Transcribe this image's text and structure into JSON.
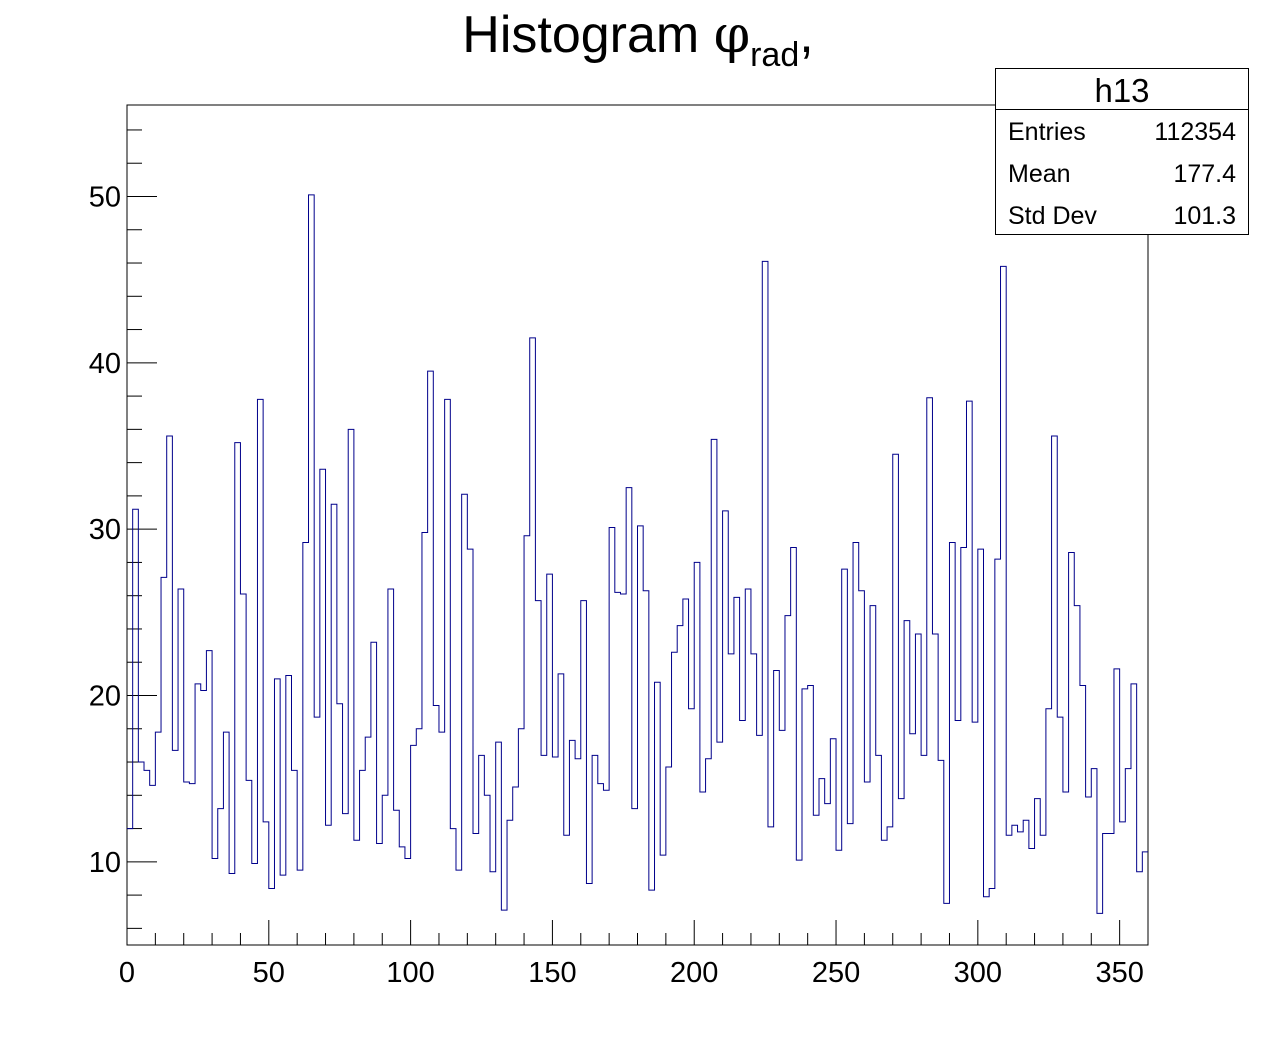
{
  "title": {
    "main": "Histogram ",
    "symbol": "φ",
    "subscript": "rad",
    "suffix": ","
  },
  "stats": {
    "name": "h13",
    "rows": [
      {
        "key": "Entries",
        "value": "112354"
      },
      {
        "key": "Mean",
        "value": "177.4"
      },
      {
        "key": "Std Dev",
        "value": "101.3"
      }
    ]
  },
  "colors": {
    "line": "#00008b",
    "axis": "#000000"
  },
  "chart_data": {
    "type": "histogram",
    "xlim": [
      0,
      360
    ],
    "ylim": [
      5,
      55.5
    ],
    "bin_width": 2,
    "xticks": [
      0,
      50,
      100,
      150,
      200,
      250,
      300,
      350
    ],
    "yticks": [
      10,
      20,
      30,
      40,
      50
    ],
    "grid": false,
    "legend": "top-right",
    "values": [
      12,
      31.2,
      16,
      15.5,
      14.6,
      17.8,
      27.1,
      35.6,
      16.7,
      26.4,
      14.8,
      14.7,
      20.7,
      20.3,
      22.7,
      10.2,
      13.2,
      17.8,
      9.3,
      35.2,
      26.1,
      14.9,
      9.9,
      37.8,
      12.4,
      8.4,
      21,
      9.2,
      21.2,
      15.5,
      9.5,
      29.2,
      50.1,
      18.7,
      33.6,
      12.2,
      31.5,
      19.5,
      12.9,
      36,
      11.3,
      15.5,
      17.5,
      23.2,
      11.1,
      14,
      26.4,
      13.1,
      10.9,
      10.2,
      17,
      18,
      29.8,
      39.5,
      19.4,
      17.8,
      37.8,
      12,
      9.5,
      32.1,
      28.8,
      11.7,
      16.4,
      14,
      9.4,
      17.2,
      7.1,
      12.5,
      14.5,
      18,
      29.6,
      41.5,
      25.7,
      16.4,
      27.3,
      16.3,
      21.3,
      11.6,
      17.3,
      16.2,
      25.7,
      8.7,
      16.4,
      14.7,
      14.3,
      30.1,
      26.2,
      26.1,
      32.5,
      13.2,
      30.2,
      26.3,
      8.3,
      20.8,
      10.4,
      15.7,
      22.6,
      24.2,
      25.8,
      19.2,
      28,
      14.2,
      16.2,
      35.4,
      17.2,
      31.1,
      22.5,
      25.9,
      18.5,
      26.4,
      22.5,
      17.6,
      46.1,
      12.1,
      21.5,
      17.9,
      24.8,
      28.9,
      10.1,
      20.4,
      20.6,
      12.8,
      15,
      13.5,
      17.4,
      10.7,
      27.6,
      12.3,
      29.2,
      26.3,
      14.8,
      25.4,
      16.4,
      11.3,
      12.1,
      34.5,
      13.8,
      24.5,
      17.7,
      23.7,
      16.4,
      37.9,
      23.7,
      16.1,
      7.5,
      29.2,
      18.5,
      28.9,
      37.7,
      18.4,
      28.8,
      7.9,
      8.4,
      28.2,
      45.8,
      11.6,
      12.2,
      11.8,
      12.5,
      10.8,
      13.8,
      11.6,
      19.2,
      35.6,
      18.7,
      14.2,
      28.6,
      25.4,
      20.6,
      13.9,
      15.6,
      6.9,
      11.7,
      11.7,
      21.6,
      12.4,
      15.6,
      20.7,
      9.4,
      10.6
    ]
  }
}
